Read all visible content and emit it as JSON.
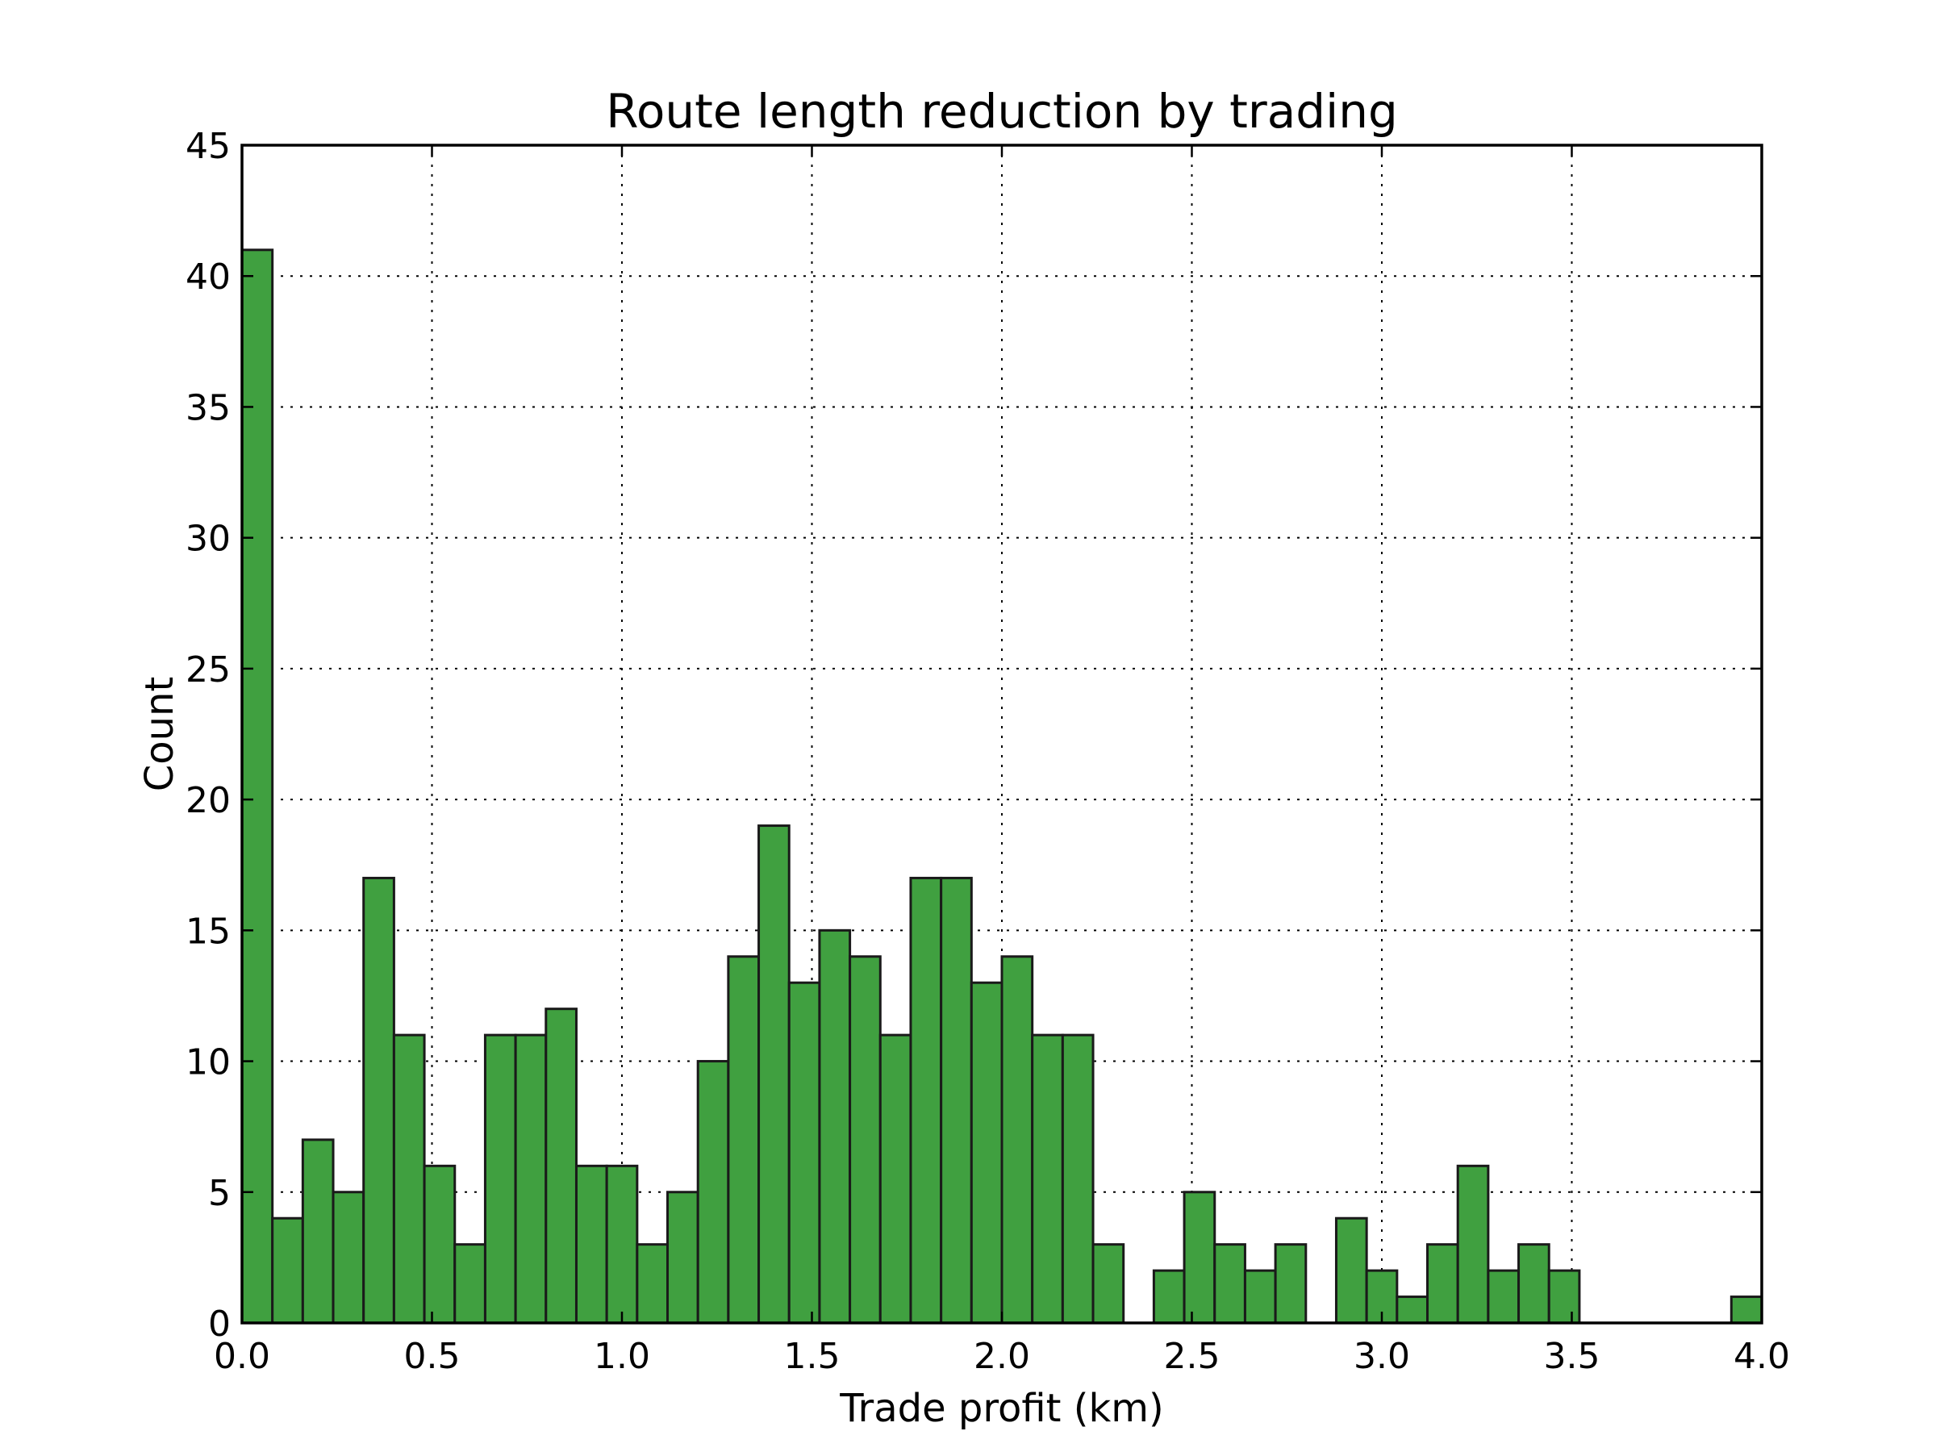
{
  "chart_data": {
    "type": "bar",
    "title": "Route length reduction by trading",
    "xlabel": "Trade profit (km)",
    "ylabel": "Count",
    "xlim": [
      0.0,
      4.0
    ],
    "ylim": [
      0,
      45
    ],
    "x_ticks": [
      "0.0",
      "0.5",
      "1.0",
      "1.5",
      "2.0",
      "2.5",
      "3.0",
      "3.5",
      "4.0"
    ],
    "y_ticks": [
      "0",
      "5",
      "10",
      "15",
      "20",
      "25",
      "30",
      "35",
      "40",
      "45"
    ],
    "grid": true,
    "bar_color": "#40a040",
    "bins": {
      "start": 0.0,
      "width": 0.08,
      "counts": [
        41,
        4,
        7,
        5,
        17,
        11,
        6,
        3,
        11,
        11,
        12,
        6,
        6,
        3,
        5,
        10,
        14,
        19,
        13,
        15,
        14,
        11,
        17,
        17,
        13,
        14,
        11,
        11,
        3,
        0,
        2,
        5,
        3,
        2,
        3,
        0,
        4,
        2,
        1,
        3,
        6,
        2,
        3,
        2,
        0,
        0,
        0,
        0,
        0,
        1
      ]
    }
  }
}
